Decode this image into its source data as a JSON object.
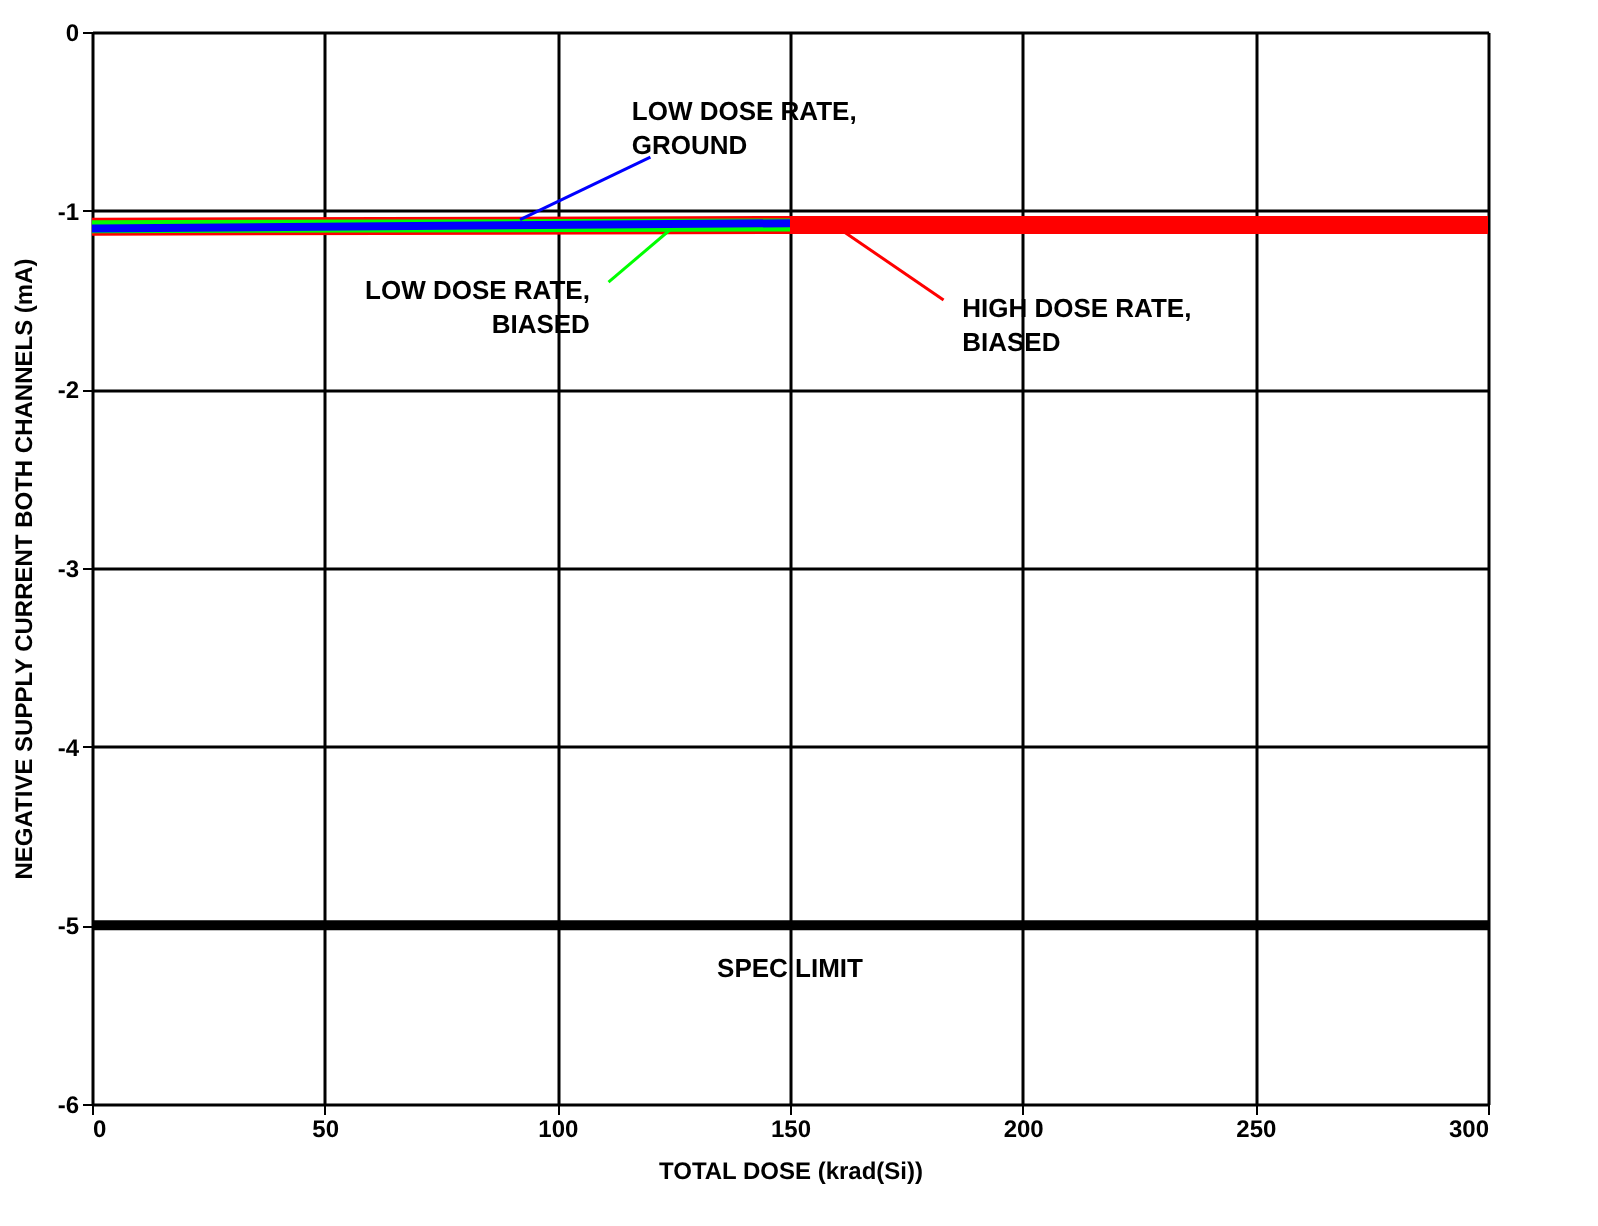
{
  "chart_data": {
    "type": "line",
    "xlabel": "TOTAL DOSE (krad(Si))",
    "ylabel": "NEGATIVE SUPPLY CURRENT BOTH CHANNELS (mA)",
    "xlim": [
      0,
      300
    ],
    "xticks": [
      0,
      50,
      100,
      150,
      200,
      250,
      300
    ],
    "ylim": [
      -6,
      0
    ],
    "yticks": [
      -6,
      -5,
      -4,
      -3,
      -2,
      -1,
      0
    ],
    "grid": true,
    "line_style": "solid",
    "marker": "none",
    "series": [
      {
        "name": "HIGH DOSE RATE, BIASED",
        "color": "#ff0000",
        "x": [
          0,
          150,
          300
        ],
        "values": [
          -1.09,
          -1.08,
          -1.08
        ]
      },
      {
        "name": "LOW DOSE RATE, BIASED",
        "color": "#00ff00",
        "x": [
          0,
          150
        ],
        "values": [
          -1.09,
          -1.08
        ]
      },
      {
        "name": "LOW DOSE RATE, GROUND",
        "color": "#0000ff",
        "x": [
          0,
          150
        ],
        "values": [
          -1.1,
          -1.07
        ]
      }
    ],
    "ref_lines": [
      {
        "axis": "y",
        "value": -5,
        "label": "SPEC LIMIT",
        "color": "#000000"
      }
    ]
  }
}
